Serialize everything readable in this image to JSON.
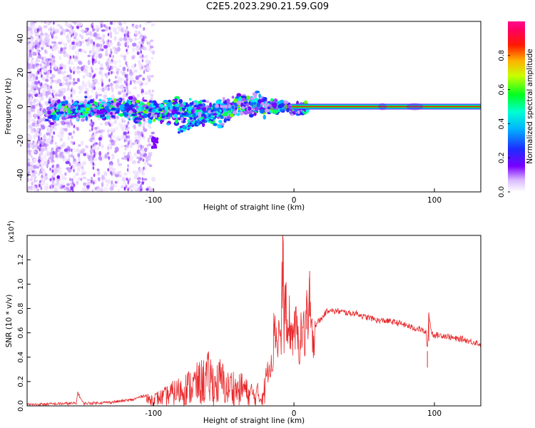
{
  "title": "C2E5.2023.290.21.59.G09",
  "chart_data": [
    {
      "type": "heatmap",
      "xlabel": "Height of straight line (km)",
      "ylabel": "Frequency (Hz)",
      "xlim": [
        -190,
        133
      ],
      "ylim": [
        -50,
        50
      ],
      "xticks": [
        -100,
        0,
        100
      ],
      "xtick_labels": [
        "-100",
        "0",
        "100"
      ],
      "yticks": [
        -40,
        -20,
        0,
        20,
        40
      ],
      "ytick_labels": [
        "-40",
        "-20",
        "0",
        "20",
        "40"
      ],
      "colorbar": {
        "label": "Normalized spectral amplitude",
        "range": [
          0,
          1
        ],
        "ticks": [
          0.0,
          0.2,
          0.4,
          0.6,
          0.8
        ],
        "tick_labels": [
          "0.0",
          "0.2",
          "0.4",
          "0.6",
          "0.8"
        ],
        "colormap": "rainbow (white → violet → blue → cyan → green → yellow → red → magenta)"
      },
      "ridge": {
        "description": "Narrow high-amplitude band near 0 Hz; noisy scatter at low heights, clean red line above ~10 km",
        "x": [
          -175,
          -150,
          -125,
          -100,
          -75,
          -60,
          -45,
          -35,
          -25,
          -15,
          -5,
          0,
          10,
          50,
          90,
          133
        ],
        "y": [
          -3,
          -2,
          -1,
          -3,
          -3,
          -4,
          -2,
          2,
          0,
          0,
          0,
          -2,
          0,
          0,
          0,
          0
        ]
      }
    },
    {
      "type": "line",
      "xlabel": "Height of straight line (km)",
      "ylabel": "SNR (10 * v/v)",
      "y_multiplier_label": "(x10",
      "y_multiplier_exp": "4",
      "y_multiplier_close": ")",
      "xlim": [
        -190,
        133
      ],
      "ylim": [
        0,
        1.4
      ],
      "xticks": [
        -100,
        0,
        100
      ],
      "xtick_labels": [
        "-100",
        "0",
        "100"
      ],
      "yticks": [
        0.0,
        0.2,
        0.4,
        0.6,
        0.8,
        1.0,
        1.2
      ],
      "ytick_labels": [
        "0.0",
        "0.2",
        "0.4",
        "0.6",
        "0.8",
        "1.0",
        "1.2"
      ],
      "line_color": "#e8282b",
      "series": [
        {
          "x": [
            -190,
            -160,
            -155,
            -154,
            -150,
            -130,
            -115,
            -108,
            -100,
            -92,
            -85,
            -78,
            -72,
            -66,
            -60,
            -56,
            -52,
            -48,
            -44,
            -40,
            -36,
            -32,
            -30,
            -28,
            -26,
            -24,
            -22,
            -20,
            -18,
            -16,
            -15,
            -14,
            -12,
            -10,
            -9,
            -8,
            -7,
            -6,
            -5,
            -4,
            -3,
            -2,
            0,
            2,
            4,
            6,
            8,
            9,
            10,
            11,
            12,
            14,
            16,
            18,
            20,
            22,
            24,
            26,
            28,
            30,
            35,
            40,
            45,
            50,
            55,
            60,
            65,
            70,
            75,
            80,
            85,
            90,
            94,
            95,
            96,
            98,
            100,
            105,
            110,
            115,
            120,
            125,
            130,
            133
          ],
          "y": [
            0.01,
            0.02,
            0.02,
            0.11,
            0.02,
            0.03,
            0.05,
            0.08,
            0.1,
            0.14,
            0.2,
            0.25,
            0.3,
            0.35,
            0.42,
            0.3,
            0.38,
            0.25,
            0.3,
            0.22,
            0.28,
            0.15,
            0.2,
            0.12,
            0.18,
            0.1,
            0.2,
            0.25,
            0.3,
            0.4,
            0.35,
            0.75,
            0.5,
            0.65,
            0.45,
            1.4,
            0.6,
            1.0,
            0.5,
            0.6,
            0.7,
            0.55,
            0.65,
            0.6,
            0.5,
            0.65,
            0.55,
            0.9,
            0.45,
            1.05,
            0.55,
            0.6,
            0.68,
            0.7,
            0.72,
            0.76,
            0.78,
            0.8,
            0.77,
            0.78,
            0.77,
            0.76,
            0.76,
            0.73,
            0.72,
            0.7,
            0.7,
            0.69,
            0.68,
            0.66,
            0.64,
            0.63,
            0.6,
            0.45,
            0.76,
            0.6,
            0.58,
            0.58,
            0.57,
            0.55,
            0.55,
            0.53,
            0.52,
            0.5
          ]
        }
      ]
    }
  ]
}
